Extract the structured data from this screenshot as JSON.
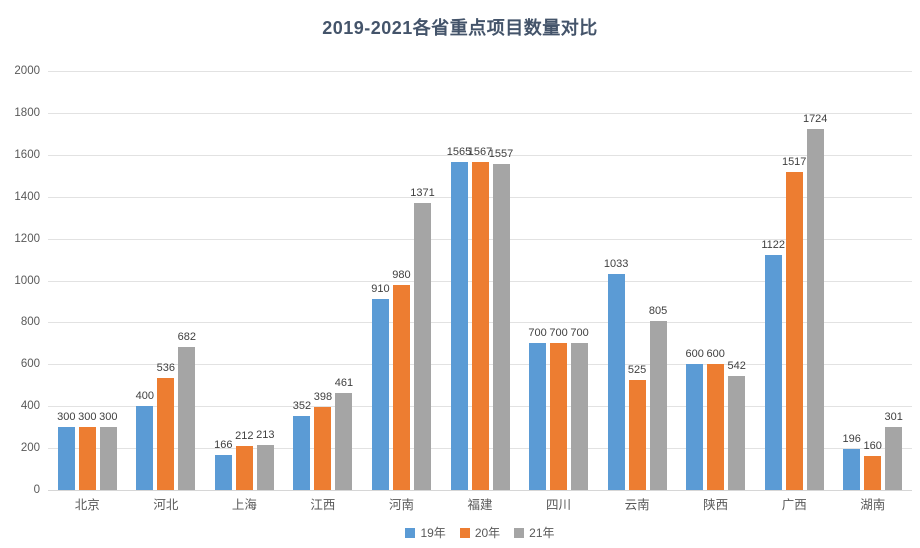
{
  "chart_data": {
    "type": "bar",
    "title": "2019-2021各省重点项目数量对比",
    "categories": [
      "北京",
      "河北",
      "上海",
      "江西",
      "河南",
      "福建",
      "四川",
      "云南",
      "陕西",
      "广西",
      "湖南"
    ],
    "series": [
      {
        "name": "19年",
        "color": "#5B9BD5",
        "values": [
          300,
          400,
          166,
          352,
          910,
          1565,
          700,
          1033,
          600,
          1122,
          196
        ]
      },
      {
        "name": "20年",
        "color": "#ED7D31",
        "values": [
          300,
          536,
          212,
          398,
          980,
          1567,
          700,
          525,
          600,
          1517,
          160
        ]
      },
      {
        "name": "21年",
        "color": "#A5A5A5",
        "values": [
          300,
          682,
          213,
          461,
          1371,
          1557,
          700,
          805,
          542,
          1724,
          301
        ]
      }
    ],
    "ylim": [
      0,
      2000
    ],
    "ytick_step": 200,
    "grid": true,
    "legend_position": "bottom",
    "data_labels": true
  },
  "colors": {
    "title": "#44546A",
    "axis_text": "#595959",
    "data_label": "#404040",
    "gridline": "#E2E2E2",
    "background": "#FFFFFF"
  }
}
